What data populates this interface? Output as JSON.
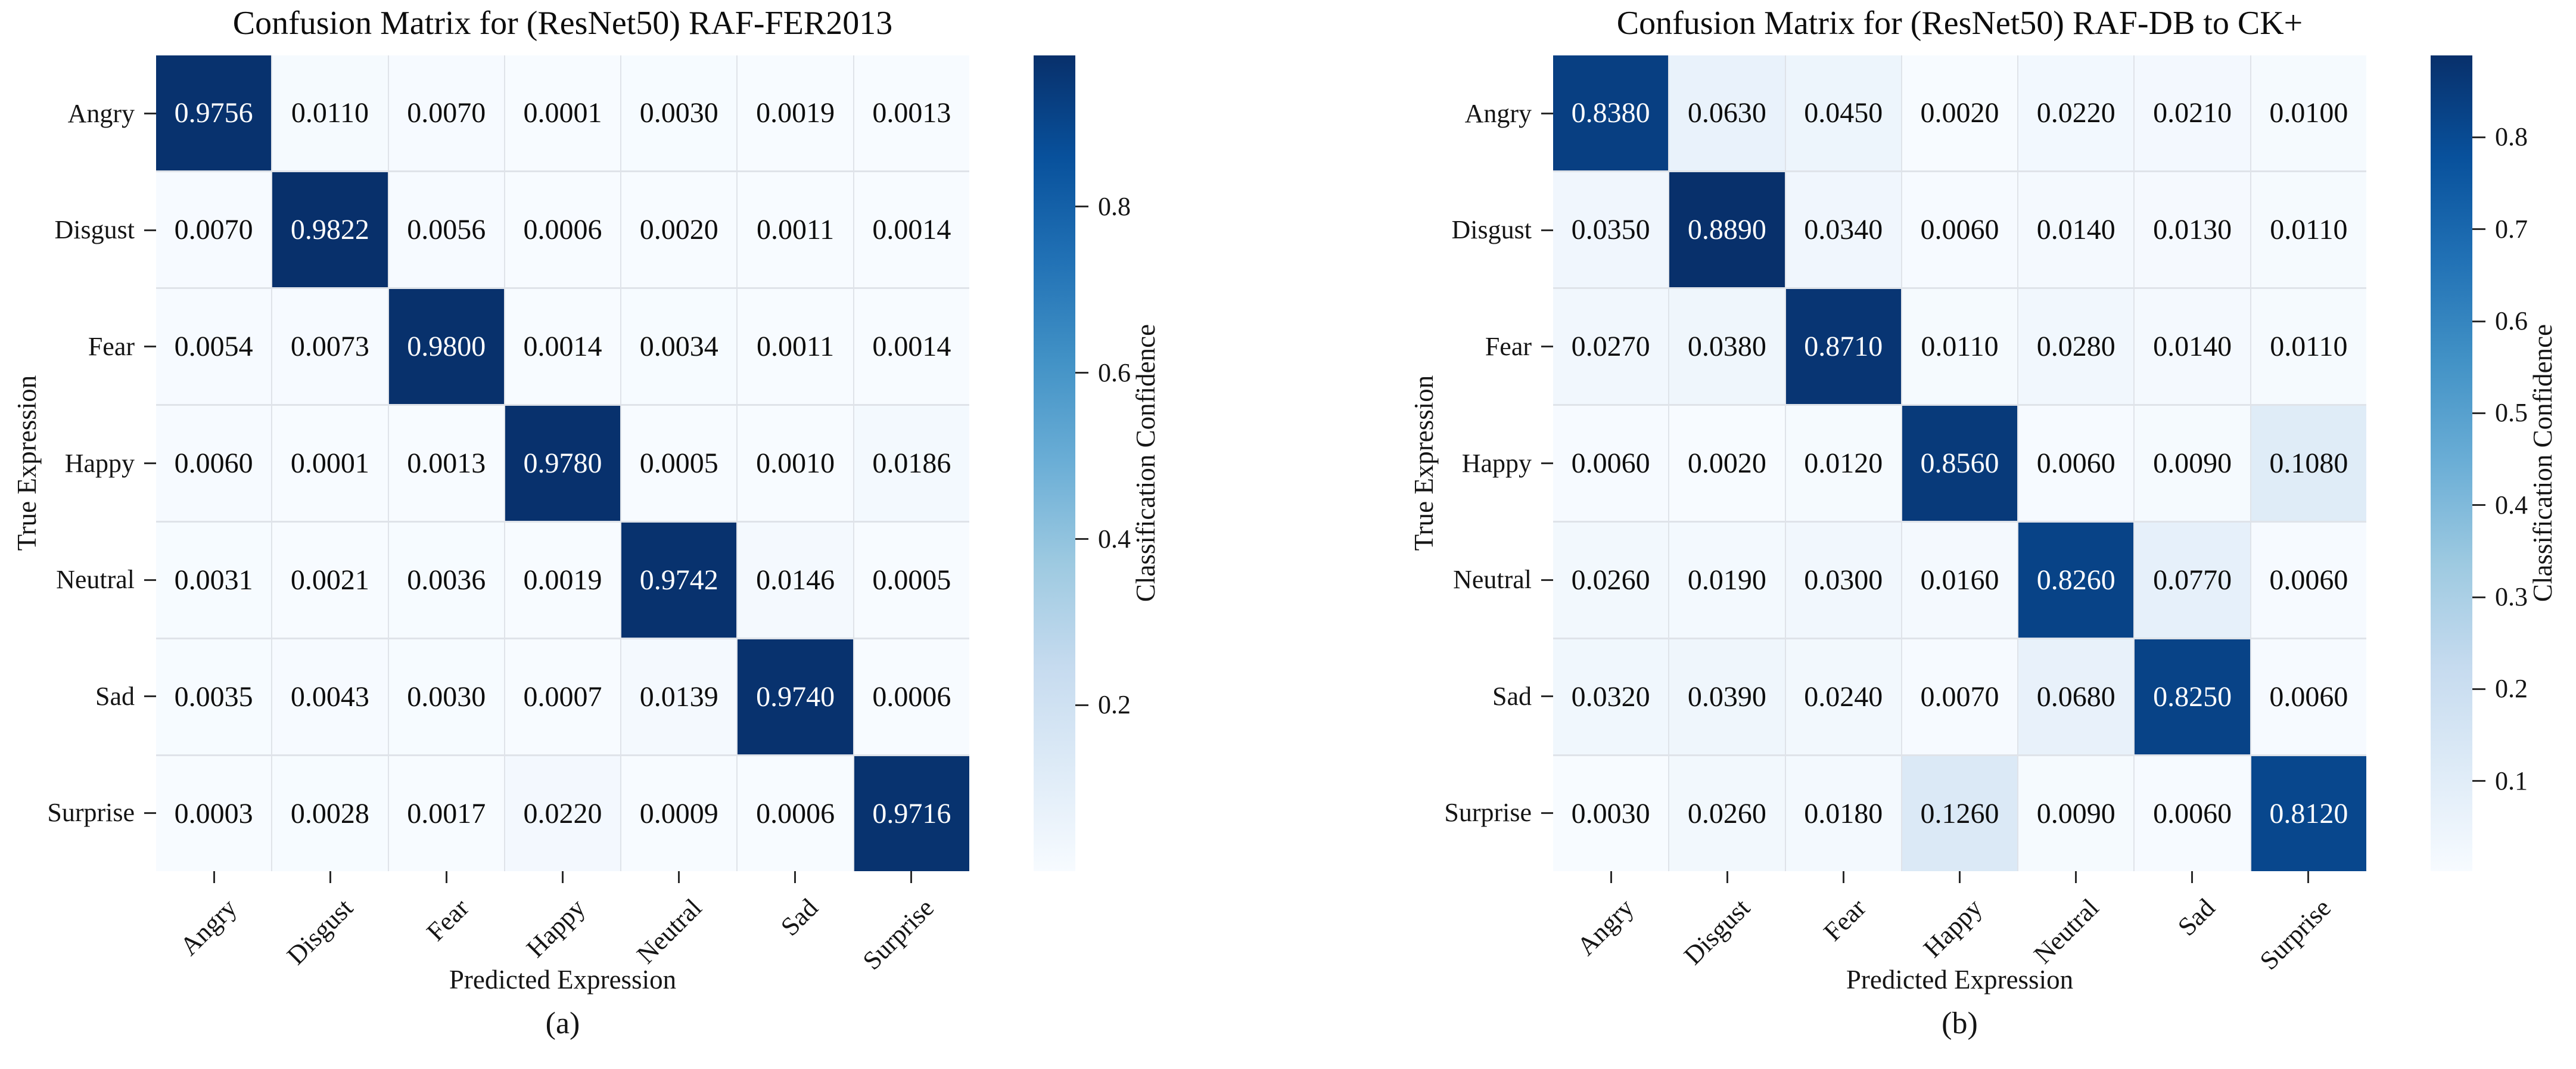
{
  "chart_data": [
    {
      "type": "heatmap",
      "title": "Confusion Matrix for (ResNet50) RAF-FER2013",
      "panel_label": "(a)",
      "xlabel": "Predicted Expression",
      "ylabel": "True Expression",
      "x_categories": [
        "Angry",
        "Disgust",
        "Fear",
        "Happy",
        "Neutral",
        "Sad",
        "Surprise"
      ],
      "y_categories": [
        "Angry",
        "Disgust",
        "Fear",
        "Happy",
        "Neutral",
        "Sad",
        "Surprise"
      ],
      "matrix": [
        [
          0.9756,
          0.011,
          0.007,
          0.0001,
          0.003,
          0.0019,
          0.0013
        ],
        [
          0.007,
          0.9822,
          0.0056,
          0.0006,
          0.002,
          0.0011,
          0.0014
        ],
        [
          0.0054,
          0.0073,
          0.98,
          0.0014,
          0.0034,
          0.0011,
          0.0014
        ],
        [
          0.006,
          0.0001,
          0.0013,
          0.978,
          0.0005,
          0.001,
          0.0186
        ],
        [
          0.0031,
          0.0021,
          0.0036,
          0.0019,
          0.9742,
          0.0146,
          0.0005
        ],
        [
          0.0035,
          0.0043,
          0.003,
          0.0007,
          0.0139,
          0.974,
          0.0006
        ],
        [
          0.0003,
          0.0028,
          0.0017,
          0.022,
          0.0009,
          0.0006,
          0.9716
        ]
      ],
      "cell_value_decimals": 4,
      "colormap": "Blues",
      "colorbar": {
        "label": "Classification Confidence",
        "ticks": [
          0.2,
          0.4,
          0.6,
          0.8
        ]
      }
    },
    {
      "type": "heatmap",
      "title": "Confusion Matrix for (ResNet50) RAF-DB to CK+",
      "panel_label": "(b)",
      "xlabel": "Predicted Expression",
      "ylabel": "True Expression",
      "x_categories": [
        "Angry",
        "Disgust",
        "Fear",
        "Happy",
        "Neutral",
        "Sad",
        "Surprise"
      ],
      "y_categories": [
        "Angry",
        "Disgust",
        "Fear",
        "Happy",
        "Neutral",
        "Sad",
        "Surprise"
      ],
      "matrix": [
        [
          0.838,
          0.063,
          0.045,
          0.002,
          0.022,
          0.021,
          0.01
        ],
        [
          0.035,
          0.889,
          0.034,
          0.006,
          0.014,
          0.013,
          0.011
        ],
        [
          0.027,
          0.038,
          0.871,
          0.011,
          0.028,
          0.014,
          0.011
        ],
        [
          0.006,
          0.002,
          0.012,
          0.856,
          0.006,
          0.009,
          0.108
        ],
        [
          0.026,
          0.019,
          0.03,
          0.016,
          0.826,
          0.077,
          0.006
        ],
        [
          0.032,
          0.039,
          0.024,
          0.007,
          0.068,
          0.825,
          0.006
        ],
        [
          0.003,
          0.026,
          0.018,
          0.126,
          0.009,
          0.006,
          0.812
        ]
      ],
      "cell_value_decimals": 4,
      "colormap": "Blues",
      "colorbar": {
        "label": "Classification Confidence",
        "ticks": [
          0.1,
          0.2,
          0.3,
          0.4,
          0.5,
          0.6,
          0.7,
          0.8
        ]
      }
    }
  ],
  "colors": {
    "colormap_low": "#f7fbff",
    "colormap_high": "#08306b",
    "gridline": "#dfe3e9",
    "tick": "#2a2a2a"
  }
}
